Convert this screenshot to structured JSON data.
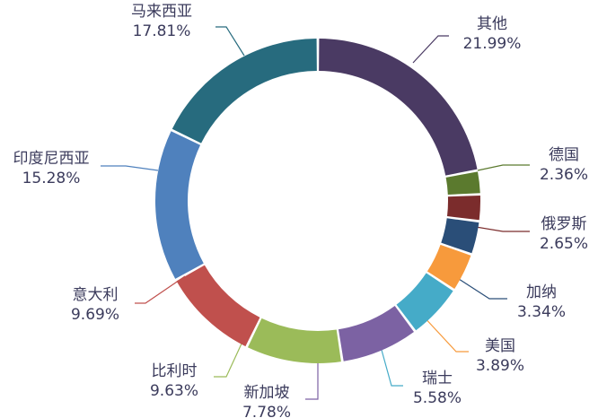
{
  "chart_data": {
    "type": "pie",
    "variant": "donut",
    "title": "",
    "slices": [
      {
        "name": "其他",
        "value": 21.99,
        "label": "21.99%",
        "color": "#4a3a63"
      },
      {
        "name": "德国",
        "value": 2.36,
        "label": "2.36%",
        "color": "#5b7a2e"
      },
      {
        "name": "俄罗斯",
        "value": 2.65,
        "label": "2.65%",
        "color": "#7b2c2c"
      },
      {
        "name": "加纳",
        "value": 3.34,
        "label": "3.34%",
        "color": "#2a4e78"
      },
      {
        "name": "美国",
        "value": 3.89,
        "label": "3.89%",
        "color": "#f79a3c"
      },
      {
        "name": "瑞士",
        "value": 5.58,
        "label": "5.58%",
        "color": "#45abc8"
      },
      {
        "name": "新加坡",
        "value": 7.78,
        "label": "7.78%",
        "color": "#7c62a3"
      },
      {
        "name": "比利时",
        "value": 9.63,
        "label": "9.63%",
        "color": "#9bbb59"
      },
      {
        "name": "意大利",
        "value": 9.69,
        "label": "9.69%",
        "color": "#c0504d"
      },
      {
        "name": "印度尼西亚",
        "value": 15.28,
        "label": "15.28%",
        "color": "#4f81bd"
      },
      {
        "name": "马来西亚",
        "value": 17.81,
        "label": "17.81%",
        "color": "#276b7e"
      }
    ]
  }
}
